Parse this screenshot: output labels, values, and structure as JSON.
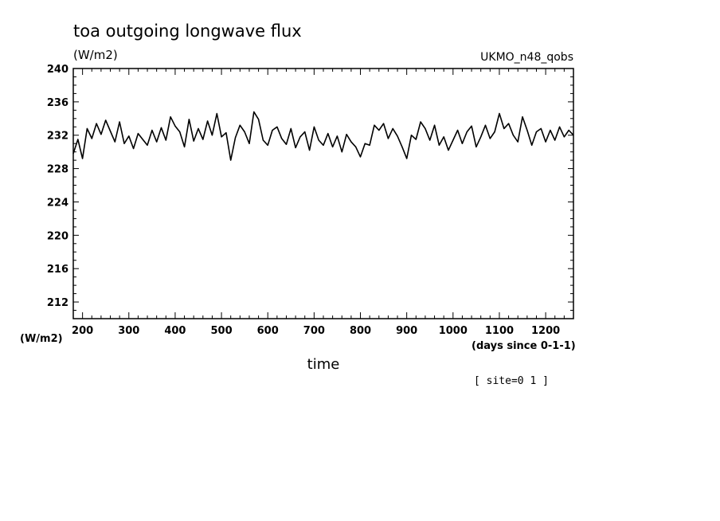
{
  "chart_data": {
    "type": "line",
    "title": "toa outgoing longwave flux",
    "units_label": "(W/m2)",
    "model_label": "UKMO_n48_qobs",
    "ylabel_bottom": "(W/m2)",
    "xlabel": "time",
    "x_units": "(days since 0-1-1)",
    "site_label": "[ site=0 1 ]",
    "xlim": [
      180,
      1260
    ],
    "ylim": [
      210,
      240
    ],
    "x_ticks": [
      "200",
      "300",
      "400",
      "500",
      "600",
      "700",
      "800",
      "900",
      "1000",
      "1100",
      "1200"
    ],
    "y_ticks": [
      "212",
      "216",
      "220",
      "224",
      "228",
      "232",
      "236",
      "240"
    ],
    "grid": false,
    "series": [
      {
        "x": [
          180,
          190,
          200,
          210,
          220,
          230,
          240,
          250,
          260,
          270,
          280,
          290,
          300,
          310,
          320,
          330,
          340,
          350,
          360,
          370,
          380,
          390,
          400,
          410,
          420,
          430,
          440,
          450,
          460,
          470,
          480,
          490,
          500,
          510,
          520,
          530,
          540,
          550,
          560,
          570,
          580,
          590,
          600,
          610,
          620,
          630,
          640,
          650,
          660,
          670,
          680,
          690,
          700,
          710,
          720,
          730,
          740,
          750,
          760,
          770,
          780,
          790,
          800,
          810,
          820,
          830,
          840,
          850,
          860,
          870,
          880,
          890,
          900,
          910,
          920,
          930,
          940,
          950,
          960,
          970,
          980,
          990,
          1000,
          1010,
          1020,
          1030,
          1040,
          1050,
          1060,
          1070,
          1080,
          1090,
          1100,
          1110,
          1120,
          1130,
          1140,
          1150,
          1160,
          1170,
          1180,
          1190,
          1200,
          1210,
          1220,
          1230,
          1240,
          1250,
          1260
        ],
        "values": [
          229.8,
          231.5,
          229.2,
          232.8,
          231.6,
          233.4,
          232.1,
          233.8,
          232.5,
          231.2,
          233.6,
          231.0,
          231.9,
          230.4,
          232.2,
          231.5,
          230.8,
          232.6,
          231.2,
          232.9,
          231.4,
          234.2,
          233.1,
          232.4,
          230.6,
          233.9,
          231.3,
          232.8,
          231.5,
          233.7,
          232.0,
          234.6,
          231.8,
          232.3,
          229.0,
          231.7,
          233.2,
          232.4,
          231.0,
          234.8,
          233.9,
          231.4,
          230.8,
          232.6,
          233.0,
          231.6,
          230.9,
          232.8,
          230.5,
          231.8,
          232.4,
          230.2,
          233.0,
          231.4,
          230.8,
          232.2,
          230.6,
          231.9,
          230.0,
          232.1,
          231.2,
          230.6,
          229.4,
          231.0,
          230.8,
          233.2,
          232.6,
          233.4,
          231.6,
          232.8,
          231.9,
          230.6,
          229.2,
          232.0,
          231.5,
          233.6,
          232.8,
          231.4,
          233.2,
          230.8,
          231.8,
          230.2,
          231.4,
          232.6,
          231.0,
          232.4,
          233.1,
          230.6,
          231.8,
          233.2,
          231.6,
          232.4,
          234.6,
          232.8,
          233.4,
          232.0,
          231.2,
          234.2,
          232.6,
          230.8,
          232.4,
          232.8,
          231.2,
          232.6,
          231.4,
          233.0,
          231.8,
          232.6,
          232.0
        ]
      }
    ]
  }
}
